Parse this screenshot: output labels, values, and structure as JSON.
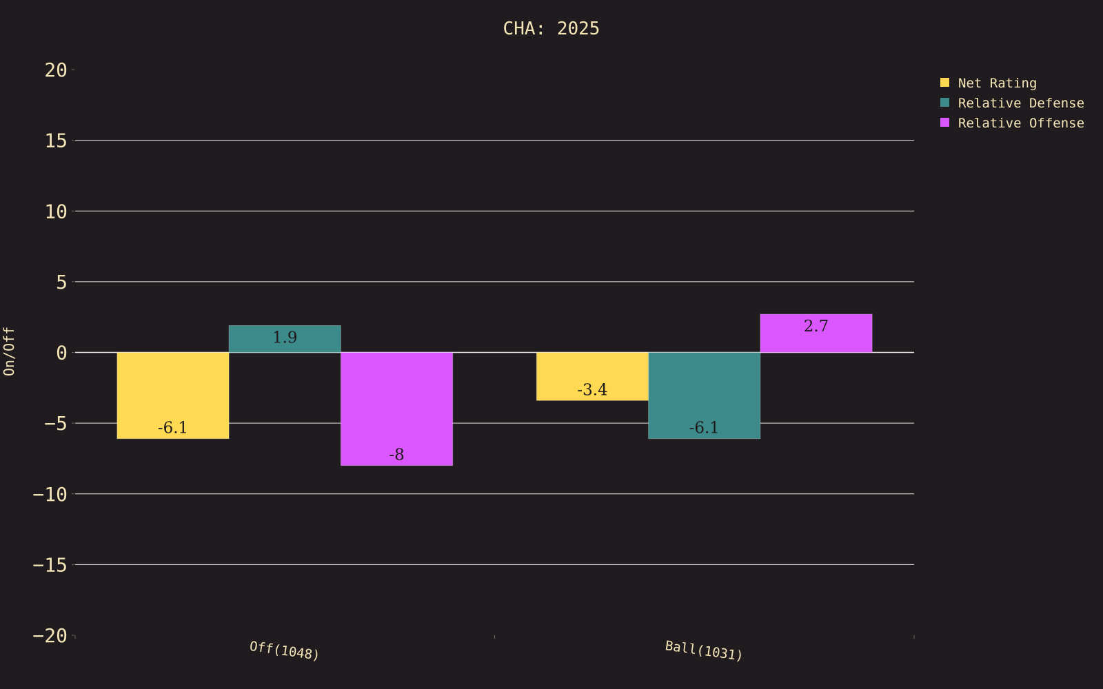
{
  "chart_data": {
    "type": "bar",
    "title": "CHA: 2025",
    "xlabel": "",
    "ylabel": "On/Off",
    "categories": [
      "Off(1048)",
      "Ball(1031)"
    ],
    "series": [
      {
        "name": "Net Rating",
        "color": "#ffd952",
        "values": [
          -6.1,
          -3.4
        ],
        "labels": [
          "-6.1",
          "-3.4"
        ]
      },
      {
        "name": "Relative Defense",
        "color": "#3d8a8a",
        "values": [
          1.9,
          -6.1
        ],
        "labels": [
          "1.9",
          "-6.1"
        ]
      },
      {
        "name": "Relative Offense",
        "color": "#d957fc",
        "values": [
          -8,
          2.7
        ],
        "labels": [
          "-8",
          "2.7"
        ]
      }
    ],
    "ylim": [
      -20,
      20
    ],
    "yticks": [
      20,
      15,
      10,
      5,
      0,
      -5,
      -10,
      -15,
      -20
    ],
    "ytick_labels": [
      "20",
      "15",
      "10",
      "5",
      "0",
      "−5",
      "−10",
      "−15",
      "−20"
    ],
    "grid": true,
    "legend_position": "top-right",
    "background": "#201b1e",
    "text_color": "#f5e6b8",
    "grid_color": "#ffffff"
  }
}
